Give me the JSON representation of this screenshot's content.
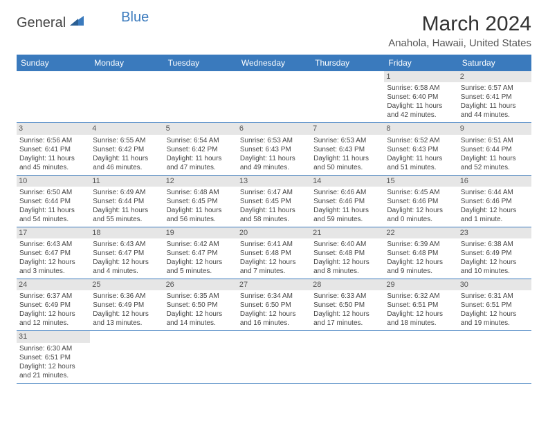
{
  "brand": {
    "text1": "General",
    "text2": "Blue",
    "icon_color": "#3a7abd"
  },
  "title": "March 2024",
  "location": "Anahola, Hawaii, United States",
  "colors": {
    "header_bg": "#3a7abd",
    "header_text": "#ffffff",
    "daynum_bg": "#e6e6e6",
    "row_border": "#3a7abd",
    "body_text": "#444444",
    "title_text": "#333333"
  },
  "dow": [
    "Sunday",
    "Monday",
    "Tuesday",
    "Wednesday",
    "Thursday",
    "Friday",
    "Saturday"
  ],
  "weeks": [
    [
      null,
      null,
      null,
      null,
      null,
      {
        "num": "1",
        "sunrise": "Sunrise: 6:58 AM",
        "sunset": "Sunset: 6:40 PM",
        "daylight": "Daylight: 11 hours and 42 minutes."
      },
      {
        "num": "2",
        "sunrise": "Sunrise: 6:57 AM",
        "sunset": "Sunset: 6:41 PM",
        "daylight": "Daylight: 11 hours and 44 minutes."
      }
    ],
    [
      {
        "num": "3",
        "sunrise": "Sunrise: 6:56 AM",
        "sunset": "Sunset: 6:41 PM",
        "daylight": "Daylight: 11 hours and 45 minutes."
      },
      {
        "num": "4",
        "sunrise": "Sunrise: 6:55 AM",
        "sunset": "Sunset: 6:42 PM",
        "daylight": "Daylight: 11 hours and 46 minutes."
      },
      {
        "num": "5",
        "sunrise": "Sunrise: 6:54 AM",
        "sunset": "Sunset: 6:42 PM",
        "daylight": "Daylight: 11 hours and 47 minutes."
      },
      {
        "num": "6",
        "sunrise": "Sunrise: 6:53 AM",
        "sunset": "Sunset: 6:43 PM",
        "daylight": "Daylight: 11 hours and 49 minutes."
      },
      {
        "num": "7",
        "sunrise": "Sunrise: 6:53 AM",
        "sunset": "Sunset: 6:43 PM",
        "daylight": "Daylight: 11 hours and 50 minutes."
      },
      {
        "num": "8",
        "sunrise": "Sunrise: 6:52 AM",
        "sunset": "Sunset: 6:43 PM",
        "daylight": "Daylight: 11 hours and 51 minutes."
      },
      {
        "num": "9",
        "sunrise": "Sunrise: 6:51 AM",
        "sunset": "Sunset: 6:44 PM",
        "daylight": "Daylight: 11 hours and 52 minutes."
      }
    ],
    [
      {
        "num": "10",
        "sunrise": "Sunrise: 6:50 AM",
        "sunset": "Sunset: 6:44 PM",
        "daylight": "Daylight: 11 hours and 54 minutes."
      },
      {
        "num": "11",
        "sunrise": "Sunrise: 6:49 AM",
        "sunset": "Sunset: 6:44 PM",
        "daylight": "Daylight: 11 hours and 55 minutes."
      },
      {
        "num": "12",
        "sunrise": "Sunrise: 6:48 AM",
        "sunset": "Sunset: 6:45 PM",
        "daylight": "Daylight: 11 hours and 56 minutes."
      },
      {
        "num": "13",
        "sunrise": "Sunrise: 6:47 AM",
        "sunset": "Sunset: 6:45 PM",
        "daylight": "Daylight: 11 hours and 58 minutes."
      },
      {
        "num": "14",
        "sunrise": "Sunrise: 6:46 AM",
        "sunset": "Sunset: 6:46 PM",
        "daylight": "Daylight: 11 hours and 59 minutes."
      },
      {
        "num": "15",
        "sunrise": "Sunrise: 6:45 AM",
        "sunset": "Sunset: 6:46 PM",
        "daylight": "Daylight: 12 hours and 0 minutes."
      },
      {
        "num": "16",
        "sunrise": "Sunrise: 6:44 AM",
        "sunset": "Sunset: 6:46 PM",
        "daylight": "Daylight: 12 hours and 1 minute."
      }
    ],
    [
      {
        "num": "17",
        "sunrise": "Sunrise: 6:43 AM",
        "sunset": "Sunset: 6:47 PM",
        "daylight": "Daylight: 12 hours and 3 minutes."
      },
      {
        "num": "18",
        "sunrise": "Sunrise: 6:43 AM",
        "sunset": "Sunset: 6:47 PM",
        "daylight": "Daylight: 12 hours and 4 minutes."
      },
      {
        "num": "19",
        "sunrise": "Sunrise: 6:42 AM",
        "sunset": "Sunset: 6:47 PM",
        "daylight": "Daylight: 12 hours and 5 minutes."
      },
      {
        "num": "20",
        "sunrise": "Sunrise: 6:41 AM",
        "sunset": "Sunset: 6:48 PM",
        "daylight": "Daylight: 12 hours and 7 minutes."
      },
      {
        "num": "21",
        "sunrise": "Sunrise: 6:40 AM",
        "sunset": "Sunset: 6:48 PM",
        "daylight": "Daylight: 12 hours and 8 minutes."
      },
      {
        "num": "22",
        "sunrise": "Sunrise: 6:39 AM",
        "sunset": "Sunset: 6:48 PM",
        "daylight": "Daylight: 12 hours and 9 minutes."
      },
      {
        "num": "23",
        "sunrise": "Sunrise: 6:38 AM",
        "sunset": "Sunset: 6:49 PM",
        "daylight": "Daylight: 12 hours and 10 minutes."
      }
    ],
    [
      {
        "num": "24",
        "sunrise": "Sunrise: 6:37 AM",
        "sunset": "Sunset: 6:49 PM",
        "daylight": "Daylight: 12 hours and 12 minutes."
      },
      {
        "num": "25",
        "sunrise": "Sunrise: 6:36 AM",
        "sunset": "Sunset: 6:49 PM",
        "daylight": "Daylight: 12 hours and 13 minutes."
      },
      {
        "num": "26",
        "sunrise": "Sunrise: 6:35 AM",
        "sunset": "Sunset: 6:50 PM",
        "daylight": "Daylight: 12 hours and 14 minutes."
      },
      {
        "num": "27",
        "sunrise": "Sunrise: 6:34 AM",
        "sunset": "Sunset: 6:50 PM",
        "daylight": "Daylight: 12 hours and 16 minutes."
      },
      {
        "num": "28",
        "sunrise": "Sunrise: 6:33 AM",
        "sunset": "Sunset: 6:50 PM",
        "daylight": "Daylight: 12 hours and 17 minutes."
      },
      {
        "num": "29",
        "sunrise": "Sunrise: 6:32 AM",
        "sunset": "Sunset: 6:51 PM",
        "daylight": "Daylight: 12 hours and 18 minutes."
      },
      {
        "num": "30",
        "sunrise": "Sunrise: 6:31 AM",
        "sunset": "Sunset: 6:51 PM",
        "daylight": "Daylight: 12 hours and 19 minutes."
      }
    ],
    [
      {
        "num": "31",
        "sunrise": "Sunrise: 6:30 AM",
        "sunset": "Sunset: 6:51 PM",
        "daylight": "Daylight: 12 hours and 21 minutes."
      },
      null,
      null,
      null,
      null,
      null,
      null
    ]
  ]
}
